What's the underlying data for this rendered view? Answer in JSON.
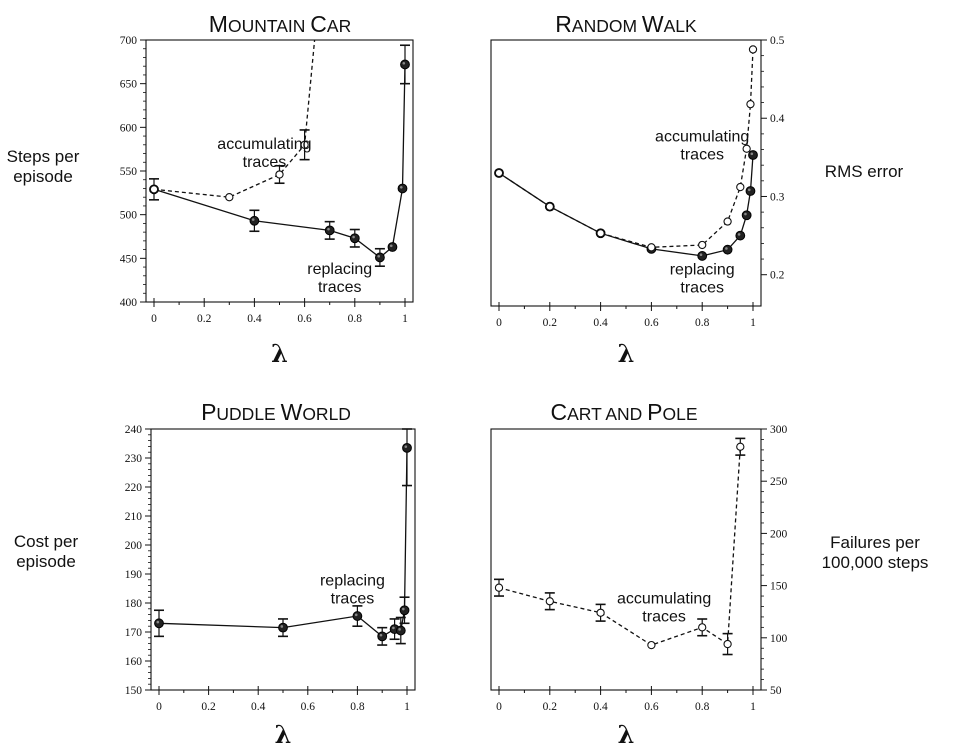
{
  "colors": {
    "ink": "#111111",
    "background": "#ffffff"
  },
  "chart_data": [
    {
      "type": "line",
      "title_parts": [
        "M",
        "OUNTAIN ",
        "C",
        "AR"
      ],
      "xlabel": "λ",
      "ylabel_lines": [
        "Steps per",
        "episode"
      ],
      "y_axis_side": "left",
      "xlim": [
        0,
        1
      ],
      "ylim": [
        400,
        700
      ],
      "xticks": [
        0,
        0.2,
        0.4,
        0.6,
        0.8,
        1
      ],
      "xtick_labels": [
        "0",
        "0.2",
        "0.4",
        "0.6",
        "0.8",
        "1"
      ],
      "yticks": [
        400,
        450,
        500,
        550,
        600,
        650,
        700
      ],
      "ytick_labels": [
        "400",
        "450",
        "500",
        "550",
        "600",
        "650",
        "700"
      ],
      "series": [
        {
          "style": "solid",
          "marker": "filled",
          "x": [
            0,
            0.4,
            0.7,
            0.8,
            0.9,
            0.95,
            0.99,
            1
          ],
          "y": [
            529,
            493,
            482,
            473,
            451,
            463,
            530,
            672
          ],
          "err": [
            12,
            12,
            10,
            10,
            10,
            0,
            0,
            22
          ]
        },
        {
          "style": "dashed",
          "marker": "open",
          "x": [
            0,
            0.3,
            0.5,
            0.6,
            0.64
          ],
          "y": [
            529,
            520,
            546,
            580,
            700
          ],
          "err": [
            0,
            0,
            10,
            17,
            0
          ],
          "marker_count": 4
        }
      ],
      "annotations": [
        {
          "lines": [
            "accumulating",
            "traces"
          ],
          "x": 0.44,
          "y": 575
        },
        {
          "lines": [
            "replacing",
            "traces"
          ],
          "x": 0.74,
          "y": 432
        }
      ]
    },
    {
      "type": "line",
      "title_parts": [
        "R",
        "ANDOM ",
        "W",
        "ALK"
      ],
      "xlabel": "λ",
      "ylabel_lines": [
        "RMS error"
      ],
      "y_axis_side": "right",
      "xlim": [
        0,
        1
      ],
      "ylim": [
        0.16,
        0.5
      ],
      "xticks": [
        0,
        0.2,
        0.4,
        0.6,
        0.8,
        1
      ],
      "xtick_labels": [
        "0",
        "0.2",
        "0.4",
        "0.6",
        "0.8",
        "1"
      ],
      "yticks": [
        0.2,
        0.3,
        0.4,
        0.5
      ],
      "ytick_labels": [
        "0.2",
        "0.3",
        "0.4",
        "0.5"
      ],
      "series": [
        {
          "style": "solid",
          "marker": "filled",
          "x": [
            0,
            0.2,
            0.4,
            0.6,
            0.8,
            0.9,
            0.95,
            0.975,
            0.99,
            1
          ],
          "y": [
            0.33,
            0.287,
            0.253,
            0.233,
            0.224,
            0.232,
            0.25,
            0.276,
            0.307,
            0.353
          ]
        },
        {
          "style": "dashed",
          "marker": "open",
          "x": [
            0,
            0.2,
            0.4,
            0.6,
            0.8,
            0.9,
            0.95,
            0.975,
            0.99,
            1
          ],
          "y": [
            0.33,
            0.287,
            0.253,
            0.235,
            0.238,
            0.268,
            0.312,
            0.361,
            0.418,
            0.488
          ]
        }
      ],
      "annotations": [
        {
          "lines": [
            "accumulating",
            "traces"
          ],
          "x": 0.8,
          "y": 0.37
        },
        {
          "lines": [
            "replacing",
            "traces"
          ],
          "x": 0.8,
          "y": 0.2
        }
      ]
    },
    {
      "type": "line",
      "title_parts": [
        "P",
        "UDDLE ",
        "W",
        "ORLD"
      ],
      "xlabel": "λ",
      "ylabel_lines": [
        "Cost per",
        "episode"
      ],
      "y_axis_side": "left",
      "xlim": [
        0,
        1
      ],
      "ylim": [
        150,
        240
      ],
      "xticks": [
        0,
        0.2,
        0.4,
        0.6,
        0.8,
        1
      ],
      "xtick_labels": [
        "0",
        "0.2",
        "0.4",
        "0.6",
        "0.8",
        "1"
      ],
      "yticks": [
        150,
        160,
        170,
        180,
        190,
        200,
        210,
        220,
        230,
        240
      ],
      "ytick_labels": [
        "150",
        "160",
        "170",
        "180",
        "190",
        "200",
        "210",
        "220",
        "230",
        "240"
      ],
      "series": [
        {
          "style": "solid",
          "marker": "filled",
          "x": [
            0,
            0.5,
            0.8,
            0.9,
            0.95,
            0.975,
            0.99,
            1
          ],
          "y": [
            173,
            171.5,
            175.5,
            168.5,
            171,
            170.5,
            177.5,
            233.5
          ],
          "err": [
            4.5,
            3,
            3.5,
            3,
            3.5,
            4.5,
            4.5,
            13
          ]
        }
      ],
      "annotations": [
        {
          "lines": [
            "replacing",
            "traces"
          ],
          "x": 0.78,
          "y": 186
        }
      ]
    },
    {
      "type": "line",
      "title_parts": [
        "C",
        "ART AND ",
        "P",
        "OLE"
      ],
      "xlabel": "λ",
      "ylabel_lines": [
        "Failures per",
        "100,000 steps"
      ],
      "y_axis_side": "right",
      "xlim": [
        0,
        1
      ],
      "ylim": [
        50,
        300
      ],
      "xticks": [
        0,
        0.2,
        0.4,
        0.6,
        0.8,
        1
      ],
      "xtick_labels": [
        "0",
        "0.2",
        "0.4",
        "0.6",
        "0.8",
        "1"
      ],
      "yticks": [
        50,
        100,
        150,
        200,
        250,
        300
      ],
      "ytick_labels": [
        "50",
        "100",
        "150",
        "200",
        "250",
        "300"
      ],
      "series": [
        {
          "style": "dashed",
          "marker": "open",
          "x": [
            0,
            0.2,
            0.4,
            0.6,
            0.8,
            0.9,
            0.95
          ],
          "y": [
            148,
            135,
            124,
            93,
            110,
            94,
            283
          ],
          "err": [
            8,
            8,
            8,
            0,
            8,
            10,
            8
          ]
        }
      ],
      "annotations": [
        {
          "lines": [
            "accumulating",
            "traces"
          ],
          "x": 0.65,
          "y": 133
        }
      ]
    }
  ]
}
